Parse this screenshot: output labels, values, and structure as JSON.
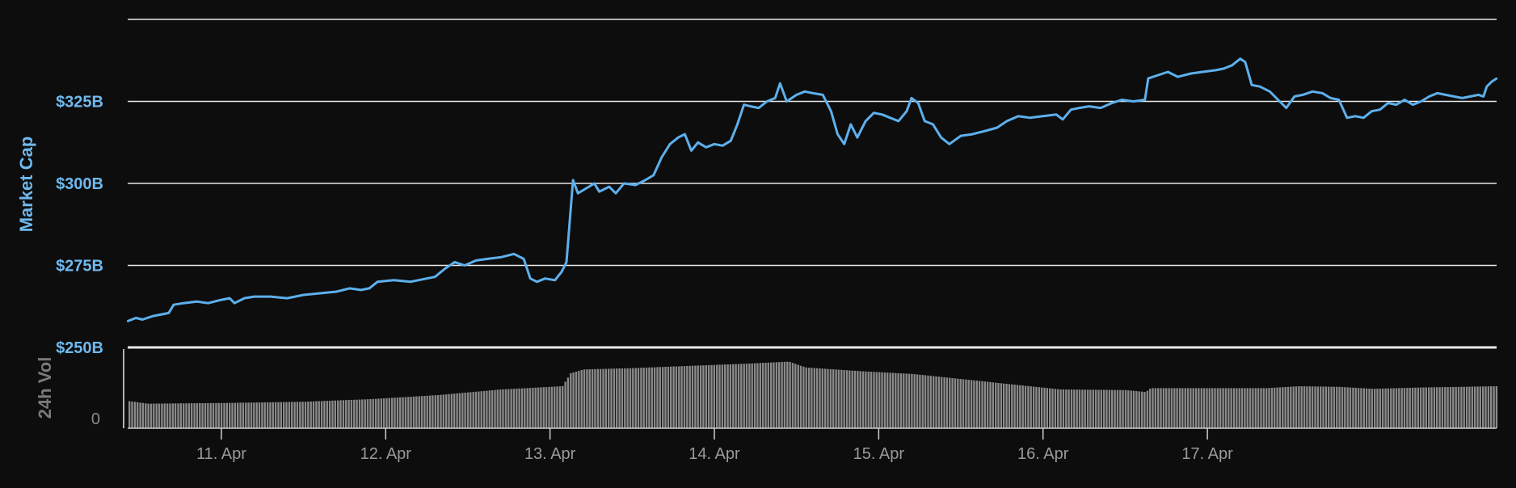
{
  "chart_data": {
    "type": "line",
    "colors": {
      "background": "#0d0d0d",
      "line": "#5db0ec",
      "grid": "#e8e8e8",
      "volume_bar": "#8a8a8a",
      "axis_text": "#6fb9ee",
      "volume_text": "#7a7a7a",
      "x_text": "#9a9a9a"
    },
    "main": {
      "ylabel": "Market Cap",
      "ylim": [
        250,
        350
      ],
      "y_ticks": [
        {
          "value": 250,
          "label": "$250B"
        },
        {
          "value": 275,
          "label": "$275B"
        },
        {
          "value": 300,
          "label": "$300B"
        },
        {
          "value": 325,
          "label": "$325B"
        },
        {
          "value": 350,
          "label": ""
        }
      ],
      "grid": true,
      "series": [
        {
          "name": "",
          "points": [
            [
              10.43,
              258.0
            ],
            [
              10.48,
              259.0
            ],
            [
              10.52,
              258.5
            ],
            [
              10.58,
              259.5
            ],
            [
              10.63,
              260.0
            ],
            [
              10.68,
              260.5
            ],
            [
              10.71,
              263.0
            ],
            [
              10.77,
              263.5
            ],
            [
              10.85,
              264.0
            ],
            [
              10.92,
              263.5
            ],
            [
              11.0,
              264.5
            ],
            [
              11.05,
              265.0
            ],
            [
              11.08,
              263.5
            ],
            [
              11.14,
              265.0
            ],
            [
              11.2,
              265.5
            ],
            [
              11.3,
              265.5
            ],
            [
              11.4,
              265.0
            ],
            [
              11.5,
              266.0
            ],
            [
              11.6,
              266.5
            ],
            [
              11.7,
              267.0
            ],
            [
              11.78,
              268.0
            ],
            [
              11.85,
              267.5
            ],
            [
              11.9,
              268.0
            ],
            [
              11.95,
              270.0
            ],
            [
              12.05,
              270.5
            ],
            [
              12.15,
              270.0
            ],
            [
              12.25,
              271.0
            ],
            [
              12.3,
              271.5
            ],
            [
              12.36,
              274.0
            ],
            [
              12.42,
              276.0
            ],
            [
              12.48,
              275.0
            ],
            [
              12.55,
              276.5
            ],
            [
              12.62,
              277.0
            ],
            [
              12.7,
              277.5
            ],
            [
              12.78,
              278.5
            ],
            [
              12.84,
              277.0
            ],
            [
              12.88,
              271.0
            ],
            [
              12.92,
              270.0
            ],
            [
              12.97,
              271.0
            ],
            [
              13.03,
              270.5
            ],
            [
              13.07,
              273.0
            ],
            [
              13.1,
              276.0
            ],
            [
              13.14,
              301.0
            ],
            [
              13.17,
              297.0
            ],
            [
              13.22,
              298.5
            ],
            [
              13.27,
              300.0
            ],
            [
              13.3,
              297.5
            ],
            [
              13.36,
              299.0
            ],
            [
              13.4,
              297.0
            ],
            [
              13.45,
              300.0
            ],
            [
              13.52,
              299.5
            ],
            [
              13.58,
              301.0
            ],
            [
              13.63,
              302.5
            ],
            [
              13.68,
              308.0
            ],
            [
              13.73,
              312.0
            ],
            [
              13.78,
              314.0
            ],
            [
              13.82,
              315.0
            ],
            [
              13.86,
              310.0
            ],
            [
              13.9,
              312.5
            ],
            [
              13.95,
              311.0
            ],
            [
              14.0,
              312.0
            ],
            [
              14.05,
              311.5
            ],
            [
              14.1,
              313.0
            ],
            [
              14.14,
              318.0
            ],
            [
              14.18,
              324.0
            ],
            [
              14.22,
              323.5
            ],
            [
              14.27,
              323.0
            ],
            [
              14.32,
              325.0
            ],
            [
              14.37,
              326.0
            ],
            [
              14.4,
              330.5
            ],
            [
              14.44,
              325.0
            ],
            [
              14.5,
              327.0
            ],
            [
              14.55,
              328.0
            ],
            [
              14.6,
              327.5
            ],
            [
              14.66,
              327.0
            ],
            [
              14.71,
              322.0
            ],
            [
              14.75,
              315.0
            ],
            [
              14.79,
              312.0
            ],
            [
              14.83,
              318.0
            ],
            [
              14.87,
              314.0
            ],
            [
              14.92,
              319.0
            ],
            [
              14.97,
              321.5
            ],
            [
              15.02,
              321.0
            ],
            [
              15.07,
              320.0
            ],
            [
              15.12,
              319.0
            ],
            [
              15.17,
              322.0
            ],
            [
              15.2,
              326.0
            ],
            [
              15.24,
              324.5
            ],
            [
              15.28,
              319.0
            ],
            [
              15.33,
              318.0
            ],
            [
              15.38,
              314.0
            ],
            [
              15.43,
              312.0
            ],
            [
              15.5,
              314.5
            ],
            [
              15.57,
              315.0
            ],
            [
              15.65,
              316.0
            ],
            [
              15.72,
              317.0
            ],
            [
              15.78,
              319.0
            ],
            [
              15.85,
              320.5
            ],
            [
              15.92,
              320.0
            ],
            [
              16.0,
              320.5
            ],
            [
              16.08,
              321.0
            ],
            [
              16.12,
              319.5
            ],
            [
              16.17,
              322.5
            ],
            [
              16.22,
              323.0
            ],
            [
              16.28,
              323.5
            ],
            [
              16.35,
              323.0
            ],
            [
              16.42,
              324.5
            ],
            [
              16.48,
              325.5
            ],
            [
              16.55,
              325.0
            ],
            [
              16.62,
              325.5
            ],
            [
              16.64,
              332.0
            ],
            [
              16.7,
              333.0
            ],
            [
              16.76,
              334.0
            ],
            [
              16.82,
              332.5
            ],
            [
              16.9,
              333.5
            ],
            [
              16.97,
              334.0
            ],
            [
              17.05,
              334.5
            ],
            [
              17.1,
              335.0
            ],
            [
              17.15,
              336.0
            ],
            [
              17.2,
              338.0
            ],
            [
              17.23,
              337.0
            ],
            [
              17.27,
              330.0
            ],
            [
              17.32,
              329.5
            ],
            [
              17.38,
              328.0
            ],
            [
              17.43,
              325.5
            ],
            [
              17.48,
              323.0
            ],
            [
              17.53,
              326.5
            ],
            [
              17.58,
              327.0
            ],
            [
              17.64,
              328.0
            ],
            [
              17.7,
              327.5
            ],
            [
              17.75,
              326.0
            ],
            [
              17.8,
              325.5
            ],
            [
              17.85,
              320.0
            ],
            [
              17.9,
              320.5
            ],
            [
              17.95,
              320.0
            ],
            [
              18.0,
              322.0
            ],
            [
              18.05,
              322.5
            ],
            [
              18.1,
              324.5
            ],
            [
              18.15,
              324.0
            ],
            [
              18.2,
              325.5
            ],
            [
              18.25,
              324.0
            ],
            [
              18.3,
              325.0
            ],
            [
              18.35,
              326.5
            ],
            [
              18.4,
              327.5
            ],
            [
              18.45,
              327.0
            ],
            [
              18.5,
              326.5
            ],
            [
              18.55,
              326.0
            ],
            [
              18.6,
              326.5
            ],
            [
              18.65,
              327.0
            ],
            [
              18.68,
              326.5
            ],
            [
              18.7,
              329.5
            ],
            [
              18.73,
              331.0
            ],
            [
              18.76,
              332.0
            ]
          ]
        }
      ]
    },
    "volume": {
      "ylabel": "24h Vol",
      "zero_label": "0",
      "relative_levels": [
        [
          10.43,
          0.42
        ],
        [
          10.55,
          0.38
        ],
        [
          11.0,
          0.39
        ],
        [
          11.5,
          0.41
        ],
        [
          11.9,
          0.45
        ],
        [
          12.3,
          0.51
        ],
        [
          12.7,
          0.6
        ],
        [
          13.07,
          0.65
        ],
        [
          13.12,
          0.85
        ],
        [
          13.2,
          0.91
        ],
        [
          13.5,
          0.93
        ],
        [
          13.8,
          0.96
        ],
        [
          14.2,
          1.0
        ],
        [
          14.45,
          1.03
        ],
        [
          14.55,
          0.94
        ],
        [
          14.9,
          0.88
        ],
        [
          15.2,
          0.84
        ],
        [
          15.5,
          0.76
        ],
        [
          15.8,
          0.68
        ],
        [
          16.1,
          0.6
        ],
        [
          16.5,
          0.59
        ],
        [
          16.62,
          0.56
        ],
        [
          16.65,
          0.62
        ],
        [
          17.0,
          0.62
        ],
        [
          17.35,
          0.62
        ],
        [
          17.55,
          0.65
        ],
        [
          17.8,
          0.64
        ],
        [
          18.0,
          0.61
        ],
        [
          18.3,
          0.63
        ],
        [
          18.76,
          0.65
        ]
      ]
    },
    "x_axis": {
      "xlim": [
        10.43,
        18.76
      ],
      "ticks": [
        {
          "value": 11,
          "label": "11. Apr"
        },
        {
          "value": 12,
          "label": "12. Apr"
        },
        {
          "value": 13,
          "label": "13. Apr"
        },
        {
          "value": 14,
          "label": "14. Apr"
        },
        {
          "value": 15,
          "label": "15. Apr"
        },
        {
          "value": 16,
          "label": "16. Apr"
        },
        {
          "value": 17,
          "label": "17. Apr"
        }
      ]
    }
  }
}
